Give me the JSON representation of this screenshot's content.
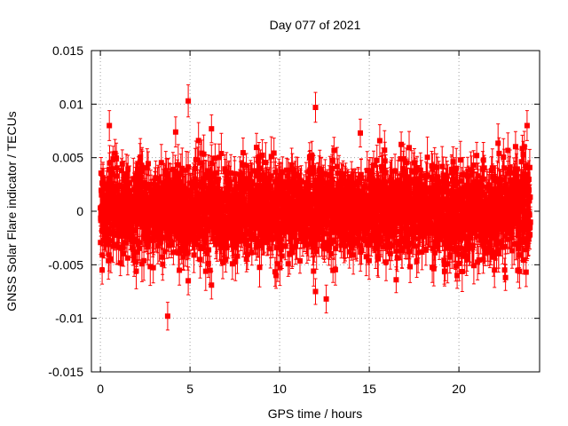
{
  "chart_data": {
    "type": "scatter",
    "title": "Day 077 of 2021",
    "xlabel": "GPS time / hours",
    "ylabel": "GNSS Solar Flare indicator / TECUs",
    "xlim": [
      -0.5,
      24.5
    ],
    "ylim": [
      -0.015,
      0.015
    ],
    "x_ticks": [
      0,
      5,
      10,
      15,
      20
    ],
    "x_tick_labels": [
      "0",
      "5",
      "10",
      "15",
      "20"
    ],
    "y_ticks": [
      -0.015,
      -0.01,
      -0.005,
      0,
      0.005,
      0.01,
      0.015
    ],
    "y_tick_labels": [
      "-0.015",
      "-0.01",
      "-0.005",
      "0",
      "0.005",
      "0.01",
      "0.015"
    ],
    "grid": true,
    "legend": "none",
    "series_color": "#ff0000",
    "series_note": "approx. 2880 samples at 30 s cadence over 0-24 h, values ~N(0, 0.002) with error bars ~0.0015; notable points listed below",
    "notable_points": [
      {
        "x": 3.75,
        "y": -0.0098,
        "err": 0.0013
      },
      {
        "x": 4.9,
        "y": 0.0103,
        "err": 0.0015
      },
      {
        "x": 12.0,
        "y": 0.0097,
        "err": 0.0014
      },
      {
        "x": 12.0,
        "y": -0.0075,
        "err": 0.0012
      },
      {
        "x": 12.6,
        "y": -0.0082,
        "err": 0.0013
      },
      {
        "x": 0.5,
        "y": 0.008,
        "err": 0.0014
      },
      {
        "x": 23.8,
        "y": 0.008,
        "err": 0.0014
      },
      {
        "x": 6.2,
        "y": -0.0069,
        "err": 0.0013
      },
      {
        "x": 4.9,
        "y": -0.0065,
        "err": 0.0013
      },
      {
        "x": 4.2,
        "y": 0.0074,
        "err": 0.0014
      },
      {
        "x": 6.2,
        "y": 0.0077,
        "err": 0.0013
      },
      {
        "x": 14.5,
        "y": 0.0073,
        "err": 0.0013
      },
      {
        "x": 16.5,
        "y": -0.0064,
        "err": 0.0012
      },
      {
        "x": 0.1,
        "y": -0.0055,
        "err": 0.0013
      },
      {
        "x": 22.6,
        "y": -0.0062,
        "err": 0.0012
      },
      {
        "x": 9.8,
        "y": -0.006,
        "err": 0.0012
      },
      {
        "x": 19.9,
        "y": -0.006,
        "err": 0.0012
      }
    ]
  }
}
